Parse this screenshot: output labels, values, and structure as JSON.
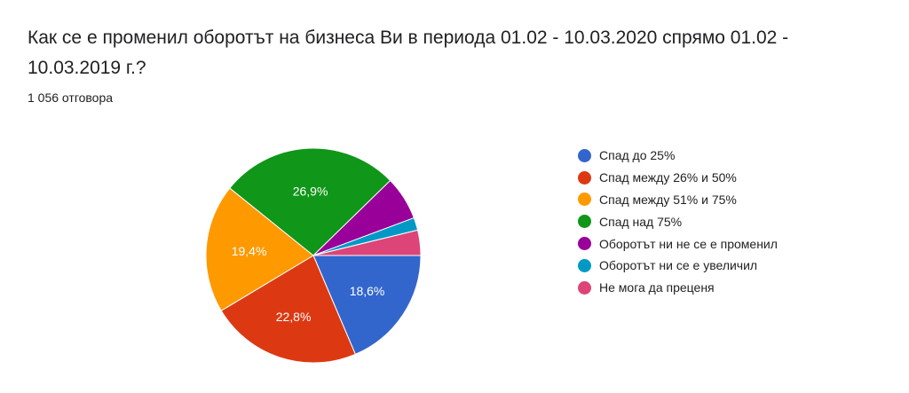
{
  "question": "Как се е променил оборотът на бизнеса Ви в периода 01.02 - 10.03.2020 спрямо 01.02 - 10.03.2019 г.?",
  "responses_label": "1 056 отговора",
  "chart_data": {
    "type": "pie",
    "title": "Как се е променил оборотът на бизнеса Ви в периода 01.02 - 10.03.2020 спрямо 01.02 - 10.03.2019 г.?",
    "legend_position": "right",
    "slices": [
      {
        "label": "Спад до 25%",
        "value": 18.6,
        "display": "18,6%",
        "color": "#3366cc"
      },
      {
        "label": "Спад между 26% и 50%",
        "value": 22.8,
        "display": "22,8%",
        "color": "#dc3912"
      },
      {
        "label": "Спад между 51% и 75%",
        "value": 19.4,
        "display": "19,4%",
        "color": "#ff9900"
      },
      {
        "label": "Спад над 75%",
        "value": 26.9,
        "display": "26,9%",
        "color": "#109618"
      },
      {
        "label": "Оборотът ни не се е променил",
        "value": 6.6,
        "display": "",
        "color": "#990099"
      },
      {
        "label": "Оборотът ни се е увеличил",
        "value": 1.9,
        "display": "",
        "color": "#0099c6"
      },
      {
        "label": "Не мога да преценя",
        "value": 3.8,
        "display": "",
        "color": "#dd4477"
      }
    ]
  }
}
